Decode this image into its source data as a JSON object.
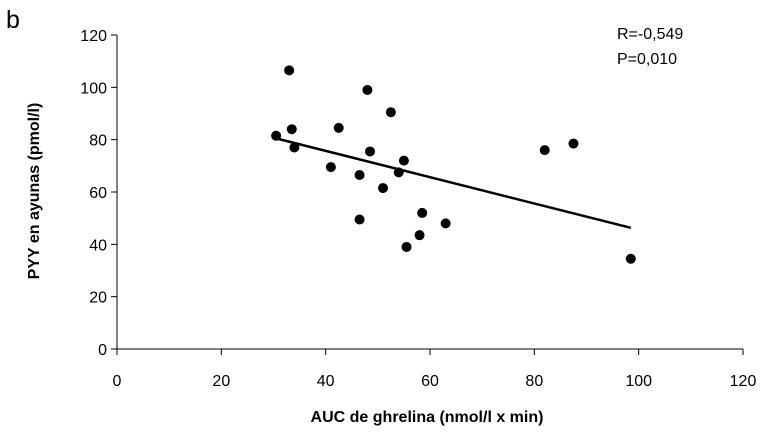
{
  "chart_data": {
    "type": "scatter",
    "panel_label": "b",
    "xlabel": "AUC de ghrelina (nmol/l x min)",
    "ylabel": "PYY en ayunas (pmol/l)",
    "xlim": [
      0,
      120
    ],
    "ylim": [
      0,
      120
    ],
    "x_ticks": [
      0,
      20,
      40,
      60,
      80,
      100,
      120
    ],
    "y_ticks": [
      0,
      20,
      40,
      60,
      80,
      100,
      120
    ],
    "grid": false,
    "annotations": {
      "r": "R=-0,549",
      "p": "P=0,010"
    },
    "series": [
      {
        "points": [
          {
            "x": 30.5,
            "y": 81.5
          },
          {
            "x": 33,
            "y": 106.5
          },
          {
            "x": 33.5,
            "y": 84
          },
          {
            "x": 34,
            "y": 77
          },
          {
            "x": 41,
            "y": 69.5
          },
          {
            "x": 42.5,
            "y": 84.5
          },
          {
            "x": 46.5,
            "y": 66.5
          },
          {
            "x": 46.5,
            "y": 49.5
          },
          {
            "x": 48,
            "y": 99
          },
          {
            "x": 48.5,
            "y": 75.5
          },
          {
            "x": 51,
            "y": 61.5
          },
          {
            "x": 52.5,
            "y": 90.5
          },
          {
            "x": 54,
            "y": 67.5
          },
          {
            "x": 55,
            "y": 72
          },
          {
            "x": 55.5,
            "y": 39
          },
          {
            "x": 58,
            "y": 43.5
          },
          {
            "x": 58.5,
            "y": 52
          },
          {
            "x": 63,
            "y": 48
          },
          {
            "x": 82,
            "y": 76
          },
          {
            "x": 87.5,
            "y": 78.5
          },
          {
            "x": 98.5,
            "y": 34.5
          }
        ],
        "color": "#000000"
      }
    ],
    "trendline": {
      "x": [
        30.5,
        98.5
      ],
      "y": [
        80.5,
        46.3
      ],
      "color": "#000000"
    }
  }
}
